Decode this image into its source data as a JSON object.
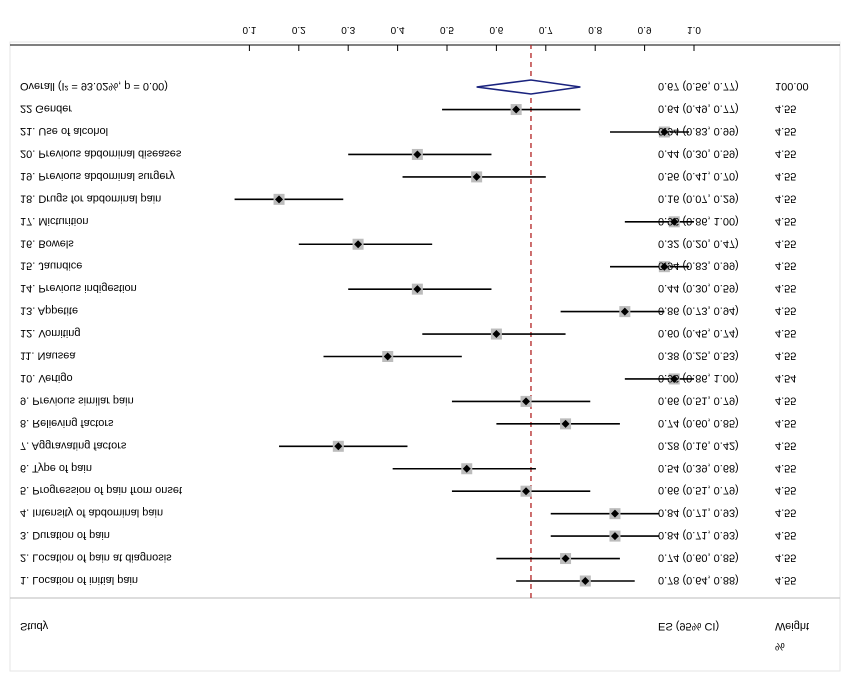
{
  "chart_data": {
    "type": "forest",
    "xlim": [
      0.0,
      1.0
    ],
    "ticks": [
      "0.1",
      "0.2",
      "0.3",
      "0.4",
      "0.5",
      "0.6",
      "0.7",
      "0.8",
      "0.9",
      "1.0"
    ],
    "tick_values": [
      0.1,
      0.2,
      0.3,
      0.4,
      0.5,
      0.6,
      0.7,
      0.8,
      0.9,
      1.0
    ],
    "reference_line": 0.67,
    "headers": {
      "study": "Study",
      "es": "ES (95% CI)",
      "weight": "Weight",
      "weight_unit": "%"
    },
    "overall": {
      "label": "Overall  (I^2 = 93.02%, p = 0.00)",
      "es": 0.67,
      "lo": 0.56,
      "hi": 0.77,
      "es_text": "0.67 (0.56, 0.77)",
      "weight": "100.00"
    },
    "studies": [
      {
        "label": "1. Location of initial pain",
        "es": 0.78,
        "lo": 0.64,
        "hi": 0.88,
        "es_text": "0.78 (0.64, 0.88)",
        "weight": "4.55"
      },
      {
        "label": "2. Location of pain at diagnosis",
        "es": 0.74,
        "lo": 0.6,
        "hi": 0.85,
        "es_text": "0.74 (0.60, 0.85)",
        "weight": "4.55"
      },
      {
        "label": "3. Duration of pain",
        "es": 0.84,
        "lo": 0.71,
        "hi": 0.93,
        "es_text": "0.84 (0.71, 0.93)",
        "weight": "4.55"
      },
      {
        "label": "4. Intensity of abdominal pain",
        "es": 0.84,
        "lo": 0.71,
        "hi": 0.93,
        "es_text": "0.84 (0.71, 0.93)",
        "weight": "4.55"
      },
      {
        "label": "5. Progression of pain from onset",
        "es": 0.66,
        "lo": 0.51,
        "hi": 0.79,
        "es_text": "0.66 (0.51, 0.79)",
        "weight": "4.55"
      },
      {
        "label": "6. Type of pain",
        "es": 0.54,
        "lo": 0.39,
        "hi": 0.68,
        "es_text": "0.54 (0.39, 0.68)",
        "weight": "4.55"
      },
      {
        "label": "7. Aggravating factors",
        "es": 0.28,
        "lo": 0.16,
        "hi": 0.42,
        "es_text": "0.28 (0.16, 0.42)",
        "weight": "4.55"
      },
      {
        "label": "8. Relieving factors",
        "es": 0.74,
        "lo": 0.6,
        "hi": 0.85,
        "es_text": "0.74 (0.60, 0.85)",
        "weight": "4.55"
      },
      {
        "label": "9. Previous similar pain",
        "es": 0.66,
        "lo": 0.51,
        "hi": 0.79,
        "es_text": "0.66 (0.51, 0.79)",
        "weight": "4.55"
      },
      {
        "label": "10. Vertigo",
        "es": 0.96,
        "lo": 0.86,
        "hi": 1.0,
        "es_text": "0.96 (0.86, 1.00)",
        "weight": "4.54"
      },
      {
        "label": "11. Nausea",
        "es": 0.38,
        "lo": 0.25,
        "hi": 0.53,
        "es_text": "0.38 (0.25, 0.53)",
        "weight": "4.55"
      },
      {
        "label": "12. Vomiting",
        "es": 0.6,
        "lo": 0.45,
        "hi": 0.74,
        "es_text": "0.60 (0.45, 0.74)",
        "weight": "4.55"
      },
      {
        "label": "13. Appetite",
        "es": 0.86,
        "lo": 0.73,
        "hi": 0.94,
        "es_text": "0.86 (0.73, 0.94)",
        "weight": "4.55"
      },
      {
        "label": "14. Previous indigestion",
        "es": 0.44,
        "lo": 0.3,
        "hi": 0.59,
        "es_text": "0.44 (0.30, 0.59)",
        "weight": "4.55"
      },
      {
        "label": "15. Jaundice",
        "es": 0.94,
        "lo": 0.83,
        "hi": 0.99,
        "es_text": "0.94 (0.83, 0.99)",
        "weight": "4.55"
      },
      {
        "label": "16. Bowels",
        "es": 0.32,
        "lo": 0.2,
        "hi": 0.47,
        "es_text": "0.32 (0.20, 0.47)",
        "weight": "4.55"
      },
      {
        "label": "17. Micturition",
        "es": 0.96,
        "lo": 0.86,
        "hi": 1.0,
        "es_text": "0.96 (0.86, 1.00)",
        "weight": "4.55"
      },
      {
        "label": "18. Drugs for abdominal pain",
        "es": 0.16,
        "lo": 0.07,
        "hi": 0.29,
        "es_text": "0.16 (0.07, 0.29)",
        "weight": "4.55"
      },
      {
        "label": "19. Previous abdominal surgery",
        "es": 0.56,
        "lo": 0.41,
        "hi": 0.7,
        "es_text": "0.56 (0.41, 0.70)",
        "weight": "4.55"
      },
      {
        "label": "20. Previous abdominal diseases",
        "es": 0.44,
        "lo": 0.3,
        "hi": 0.59,
        "es_text": "0.44 (0.30, 0.59)",
        "weight": "4.55"
      },
      {
        "label": "21. Use of alcohol",
        "es": 0.94,
        "lo": 0.83,
        "hi": 0.99,
        "es_text": "0.94 (0.83, 0.99)",
        "weight": "4.55"
      },
      {
        "label": "22 Gender",
        "es": 0.64,
        "lo": 0.49,
        "hi": 0.77,
        "es_text": "0.64 (0.49, 0.77)",
        "weight": "4.55"
      }
    ]
  }
}
